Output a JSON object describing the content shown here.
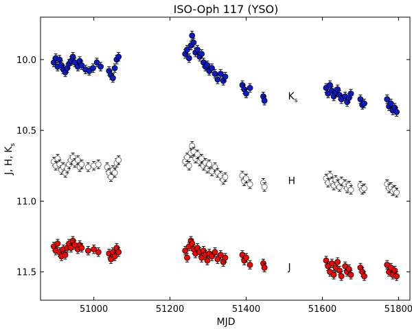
{
  "chart_data": {
    "type": "scatter",
    "title": "ISO-Oph 117 (YSO)",
    "xlabel": "MJD",
    "ylabel_parts": [
      "J, H, K",
      "s"
    ],
    "xlim": [
      50860,
      51830
    ],
    "ylim": [
      11.7,
      9.7
    ],
    "y_inverted": true,
    "xticks": [
      51000,
      51200,
      51400,
      51600,
      51800
    ],
    "yticks": [
      10.0,
      10.5,
      11.0,
      11.5
    ],
    "ytick_labels": [
      "10.0",
      "10.5",
      "11.0",
      "11.5"
    ],
    "grid": false,
    "band_labels": [
      {
        "text": "K",
        "sub": "s",
        "x": 51510,
        "y": 10.28
      },
      {
        "text": "H",
        "sub": "",
        "x": 51510,
        "y": 10.88
      },
      {
        "text": "J",
        "sub": "",
        "x": 51510,
        "y": 11.49
      }
    ],
    "series": [
      {
        "name": "K",
        "color": "#0a1acc",
        "marker": "circle",
        "error": 0.03,
        "points": [
          [
            50895,
            10.02
          ],
          [
            50900,
            9.99
          ],
          [
            50905,
            10.05
          ],
          [
            50910,
            10.0
          ],
          [
            50915,
            10.04
          ],
          [
            50920,
            10.07
          ],
          [
            50925,
            10.09
          ],
          [
            50930,
            10.06
          ],
          [
            50935,
            10.03
          ],
          [
            50940,
            10.01
          ],
          [
            50945,
            9.98
          ],
          [
            50950,
            10.02
          ],
          [
            50958,
            10.05
          ],
          [
            50963,
            10.01
          ],
          [
            50968,
            10.04
          ],
          [
            50978,
            10.07
          ],
          [
            50988,
            10.08
          ],
          [
            50998,
            10.06
          ],
          [
            51008,
            10.02
          ],
          [
            51018,
            10.05
          ],
          [
            51040,
            10.08
          ],
          [
            51045,
            10.11
          ],
          [
            51050,
            10.13
          ],
          [
            51055,
            10.06
          ],
          [
            51060,
            10.0
          ],
          [
            51065,
            9.98
          ],
          [
            51240,
            9.96
          ],
          [
            51245,
            9.93
          ],
          [
            51250,
            9.99
          ],
          [
            51255,
            9.9
          ],
          [
            51258,
            9.83
          ],
          [
            51262,
            9.88
          ],
          [
            51267,
            9.95
          ],
          [
            51272,
            9.93
          ],
          [
            51278,
            9.98
          ],
          [
            51283,
            9.96
          ],
          [
            51288,
            10.02
          ],
          [
            51293,
            10.05
          ],
          [
            51298,
            10.04
          ],
          [
            51303,
            10.08
          ],
          [
            51310,
            10.06
          ],
          [
            51318,
            10.1
          ],
          [
            51325,
            10.14
          ],
          [
            51333,
            10.1
          ],
          [
            51340,
            10.15
          ],
          [
            51345,
            10.12
          ],
          [
            51390,
            10.18
          ],
          [
            51395,
            10.21
          ],
          [
            51400,
            10.24
          ],
          [
            51410,
            10.2
          ],
          [
            51445,
            10.26
          ],
          [
            51448,
            10.29
          ],
          [
            51610,
            10.2
          ],
          [
            51615,
            10.24
          ],
          [
            51620,
            10.18
          ],
          [
            51625,
            10.22
          ],
          [
            51630,
            10.26
          ],
          [
            51635,
            10.23
          ],
          [
            51640,
            10.21
          ],
          [
            51645,
            10.25
          ],
          [
            51650,
            10.28
          ],
          [
            51660,
            10.26
          ],
          [
            51665,
            10.3
          ],
          [
            51670,
            10.27
          ],
          [
            51675,
            10.24
          ],
          [
            51700,
            10.28
          ],
          [
            51705,
            10.32
          ],
          [
            51710,
            10.31
          ],
          [
            51770,
            10.28
          ],
          [
            51775,
            10.33
          ],
          [
            51780,
            10.31
          ],
          [
            51785,
            10.36
          ],
          [
            51790,
            10.34
          ],
          [
            51795,
            10.37
          ]
        ]
      },
      {
        "name": "H",
        "color": "#ffffff",
        "edge": "#555555",
        "marker": "circle",
        "error": 0.03,
        "points": [
          [
            50895,
            10.72
          ],
          [
            50900,
            10.75
          ],
          [
            50905,
            10.7
          ],
          [
            50910,
            10.74
          ],
          [
            50915,
            10.78
          ],
          [
            50920,
            10.76
          ],
          [
            50925,
            10.8
          ],
          [
            50930,
            10.77
          ],
          [
            50935,
            10.74
          ],
          [
            50940,
            10.71
          ],
          [
            50945,
            10.69
          ],
          [
            50950,
            10.73
          ],
          [
            50958,
            10.71
          ],
          [
            50963,
            10.76
          ],
          [
            50968,
            10.74
          ],
          [
            50985,
            10.76
          ],
          [
            51000,
            10.75
          ],
          [
            51012,
            10.74
          ],
          [
            51035,
            10.76
          ],
          [
            51040,
            10.8
          ],
          [
            51045,
            10.83
          ],
          [
            51050,
            10.78
          ],
          [
            51055,
            10.8
          ],
          [
            51060,
            10.73
          ],
          [
            51065,
            10.71
          ],
          [
            51240,
            10.72
          ],
          [
            51245,
            10.69
          ],
          [
            51250,
            10.75
          ],
          [
            51255,
            10.66
          ],
          [
            51258,
            10.61
          ],
          [
            51262,
            10.65
          ],
          [
            51267,
            10.7
          ],
          [
            51272,
            10.67
          ],
          [
            51278,
            10.72
          ],
          [
            51283,
            10.7
          ],
          [
            51288,
            10.75
          ],
          [
            51293,
            10.73
          ],
          [
            51298,
            10.77
          ],
          [
            51303,
            10.74
          ],
          [
            51310,
            10.79
          ],
          [
            51318,
            10.76
          ],
          [
            51325,
            10.8
          ],
          [
            51333,
            10.82
          ],
          [
            51340,
            10.85
          ],
          [
            51345,
            10.83
          ],
          [
            51390,
            10.82
          ],
          [
            51395,
            10.86
          ],
          [
            51400,
            10.84
          ],
          [
            51410,
            10.88
          ],
          [
            51445,
            10.87
          ],
          [
            51448,
            10.9
          ],
          [
            51610,
            10.84
          ],
          [
            51615,
            10.87
          ],
          [
            51620,
            10.82
          ],
          [
            51625,
            10.86
          ],
          [
            51630,
            10.89
          ],
          [
            51635,
            10.85
          ],
          [
            51640,
            10.88
          ],
          [
            51645,
            10.9
          ],
          [
            51650,
            10.86
          ],
          [
            51660,
            10.88
          ],
          [
            51665,
            10.91
          ],
          [
            51670,
            10.89
          ],
          [
            51675,
            10.92
          ],
          [
            51700,
            10.89
          ],
          [
            51705,
            10.92
          ],
          [
            51710,
            10.91
          ],
          [
            51770,
            10.88
          ],
          [
            51775,
            10.91
          ],
          [
            51780,
            10.9
          ],
          [
            51785,
            10.93
          ],
          [
            51790,
            10.92
          ],
          [
            51795,
            10.94
          ]
        ]
      },
      {
        "name": "J",
        "color": "#ff0000",
        "marker": "circle",
        "error": 0.03,
        "points": [
          [
            50895,
            11.32
          ],
          [
            50900,
            11.35
          ],
          [
            50905,
            11.3
          ],
          [
            50910,
            11.36
          ],
          [
            50915,
            11.39
          ],
          [
            50920,
            11.34
          ],
          [
            50925,
            11.38
          ],
          [
            50930,
            11.33
          ],
          [
            50935,
            11.3
          ],
          [
            50940,
            11.33
          ],
          [
            50945,
            11.28
          ],
          [
            50950,
            11.31
          ],
          [
            50958,
            11.34
          ],
          [
            50963,
            11.31
          ],
          [
            50968,
            11.33
          ],
          [
            50985,
            11.35
          ],
          [
            51000,
            11.34
          ],
          [
            51012,
            11.36
          ],
          [
            51040,
            11.37
          ],
          [
            51045,
            11.41
          ],
          [
            51050,
            11.36
          ],
          [
            51055,
            11.39
          ],
          [
            51060,
            11.33
          ],
          [
            51065,
            11.36
          ],
          [
            51240,
            11.35
          ],
          [
            51245,
            11.4
          ],
          [
            51250,
            11.32
          ],
          [
            51255,
            11.28
          ],
          [
            51258,
            11.3
          ],
          [
            51262,
            11.34
          ],
          [
            51267,
            11.37
          ],
          [
            51272,
            11.33
          ],
          [
            51278,
            11.36
          ],
          [
            51283,
            11.4
          ],
          [
            51288,
            11.35
          ],
          [
            51293,
            11.38
          ],
          [
            51298,
            11.42
          ],
          [
            51303,
            11.37
          ],
          [
            51310,
            11.39
          ],
          [
            51318,
            11.36
          ],
          [
            51325,
            11.41
          ],
          [
            51333,
            11.38
          ],
          [
            51340,
            11.43
          ],
          [
            51345,
            11.4
          ],
          [
            51390,
            11.38
          ],
          [
            51395,
            11.42
          ],
          [
            51400,
            11.4
          ],
          [
            51410,
            11.45
          ],
          [
            51445,
            11.44
          ],
          [
            51448,
            11.47
          ],
          [
            51610,
            11.42
          ],
          [
            51615,
            11.46
          ],
          [
            51620,
            11.5
          ],
          [
            51625,
            11.44
          ],
          [
            51630,
            11.52
          ],
          [
            51635,
            11.47
          ],
          [
            51640,
            11.43
          ],
          [
            51645,
            11.49
          ],
          [
            51650,
            11.53
          ],
          [
            51660,
            11.46
          ],
          [
            51665,
            11.5
          ],
          [
            51670,
            11.48
          ],
          [
            51675,
            11.52
          ],
          [
            51700,
            11.47
          ],
          [
            51705,
            11.5
          ],
          [
            51710,
            11.53
          ],
          [
            51770,
            11.45
          ],
          [
            51775,
            11.5
          ],
          [
            51780,
            11.47
          ],
          [
            51785,
            11.52
          ],
          [
            51790,
            11.49
          ],
          [
            51795,
            11.53
          ]
        ]
      }
    ]
  }
}
